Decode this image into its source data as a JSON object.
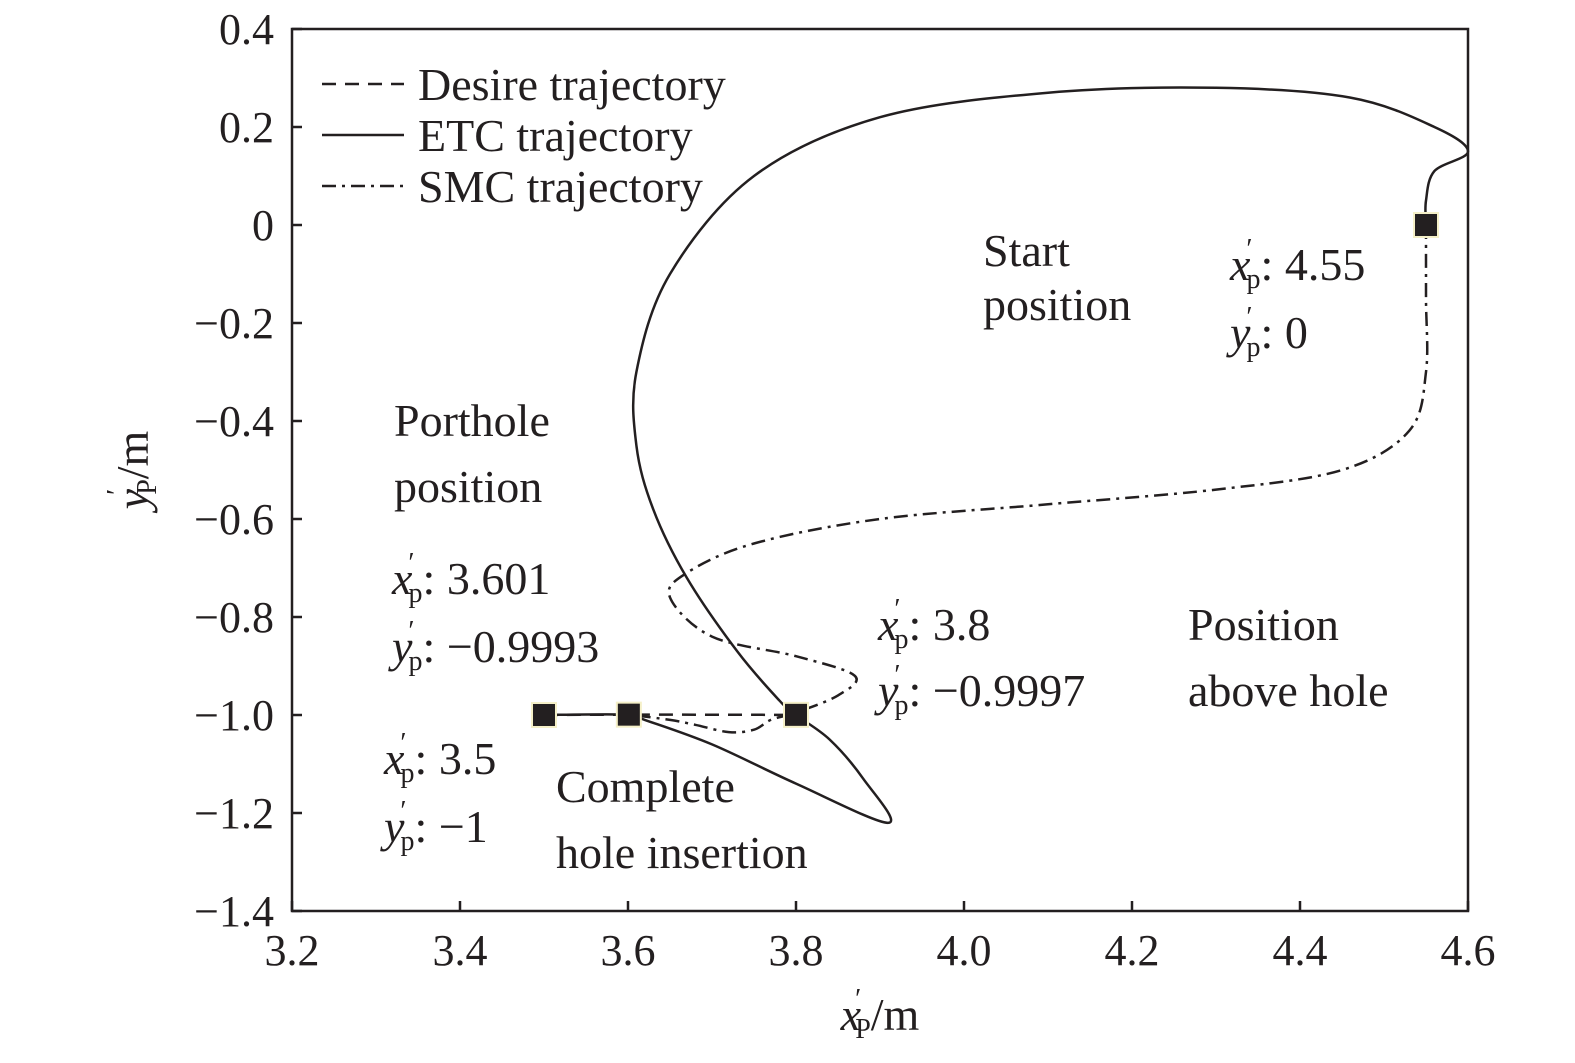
{
  "chart_data": {
    "type": "line",
    "xlabel": {
      "var": "x",
      "sub": "P",
      "unit": "/m"
    },
    "ylabel": {
      "var": "y",
      "sub": "P",
      "unit": "/m"
    },
    "xlim": [
      3.2,
      4.6
    ],
    "ylim": [
      -1.4,
      0.4
    ],
    "xticks": [
      "3.2",
      "3.4",
      "3.6",
      "3.8",
      "4.0",
      "4.2",
      "4.4",
      "4.6"
    ],
    "yticks": [
      "0.4",
      "0.2",
      "0",
      "−0.2",
      "−0.4",
      "−0.6",
      "−0.8",
      "−1.0",
      "−1.2",
      "−1.4"
    ],
    "grid": false,
    "legend_position": "top-left",
    "series": [
      {
        "name": "Desire trajectory",
        "style": "dashed",
        "x": [
          3.5,
          3.601,
          3.8
        ],
        "y": [
          -1.0,
          -0.9993,
          -0.9997
        ]
      },
      {
        "name": "ETC trajectory",
        "style": "solid",
        "x": [
          4.55,
          4.55,
          4.56,
          4.6,
          4.56,
          4.46,
          4.3,
          4.1,
          3.9,
          3.75,
          3.65,
          3.61,
          3.61,
          3.63,
          3.67,
          3.73,
          3.78,
          3.8,
          3.84,
          3.88,
          3.91,
          3.8,
          3.7,
          3.62,
          3.6,
          3.5
        ],
        "y": [
          0.0,
          0.05,
          0.11,
          0.15,
          0.2,
          0.26,
          0.28,
          0.27,
          0.22,
          0.1,
          -0.1,
          -0.3,
          -0.45,
          -0.58,
          -0.72,
          -0.87,
          -0.97,
          -1.0,
          -1.05,
          -1.13,
          -1.22,
          -1.14,
          -1.06,
          -1.01,
          -0.9993,
          -1.0
        ]
      },
      {
        "name": "SMC trajectory",
        "style": "dashdot",
        "x": [
          4.55,
          4.55,
          4.55,
          4.53,
          4.45,
          4.3,
          4.1,
          3.9,
          3.75,
          3.67,
          3.65,
          3.7,
          3.8,
          3.87,
          3.85,
          3.8,
          3.77,
          3.75,
          3.72,
          3.68,
          3.65,
          3.601
        ],
        "y": [
          0.0,
          -0.15,
          -0.3,
          -0.42,
          -0.5,
          -0.54,
          -0.57,
          -0.6,
          -0.65,
          -0.71,
          -0.76,
          -0.84,
          -0.88,
          -0.92,
          -0.96,
          -0.995,
          -1.01,
          -1.03,
          -1.035,
          -1.02,
          -1.01,
          -0.9993
        ]
      }
    ],
    "markers": [
      {
        "x": 3.5,
        "y": -1.0
      },
      {
        "x": 3.601,
        "y": -0.9993
      },
      {
        "x": 3.8,
        "y": -0.9997
      },
      {
        "x": 4.55,
        "y": 0.0
      }
    ],
    "annotations": {
      "start": {
        "lines": [
          "Start",
          "position"
        ]
      },
      "porthole": {
        "lines": [
          "Porthole",
          "position"
        ]
      },
      "above": {
        "lines": [
          "Position",
          "above hole"
        ]
      },
      "complete": {
        "lines": [
          "Complete",
          "hole insertion"
        ]
      },
      "coords": [
        {
          "id": "c1",
          "xval": "4.55",
          "yval": "0"
        },
        {
          "id": "c2",
          "xval": "3.601",
          "yval": "−0.9993"
        },
        {
          "id": "c3",
          "xval": "3.8",
          "yval": "−0.9997"
        },
        {
          "id": "c4",
          "xval": "3.5",
          "yval": "−1"
        }
      ]
    },
    "colors": {
      "line": "#231f20",
      "marker": "#231f20",
      "marker_edge": "#f5f0c8"
    }
  }
}
